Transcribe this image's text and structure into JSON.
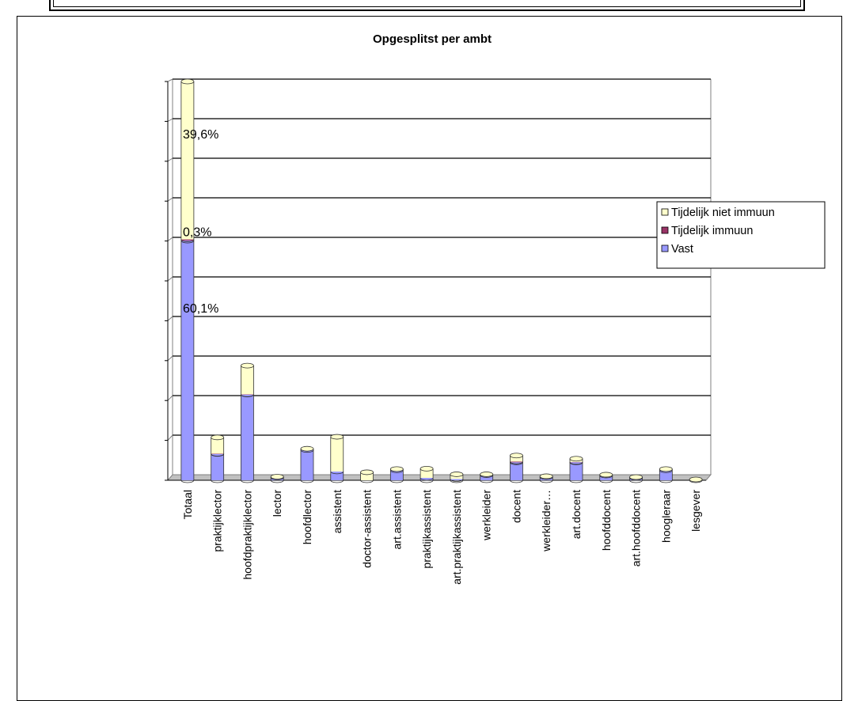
{
  "chart_data": {
    "type": "bar",
    "stacked": true,
    "title": "Opgesplitst per ambt",
    "categories": [
      "Totaal",
      "praktijklector",
      "hoofdpraktijklector",
      "lector",
      "hoofdlector",
      "assistent",
      "doctor-assistent",
      "art.assistent",
      "praktijkassistent",
      "art.praktijkassistent",
      "werkleider",
      "docent",
      "werkleider…",
      "art.docent",
      "hoofddocent",
      "art.hoofddocent",
      "hoogleraar",
      "lesgever"
    ],
    "series": [
      {
        "name": "Vast",
        "color": "#9999ff",
        "values": [
          60.1,
          6.6,
          21.5,
          0.7,
          7.6,
          2.2,
          0.0,
          2.5,
          0.6,
          0.3,
          1.3,
          4.5,
          0.8,
          4.5,
          1.2,
          0.6,
          2.5,
          0.0
        ]
      },
      {
        "name": "Tijdelijk immuun",
        "color": "#993366",
        "values": [
          0.3,
          0.05,
          0.05,
          0.0,
          0.0,
          0.0,
          0.0,
          0.0,
          0.0,
          0.0,
          0.0,
          0.2,
          0.0,
          0.1,
          0.0,
          0.0,
          0.0,
          0.0
        ]
      },
      {
        "name": "Tijdelijk niet immuun",
        "color": "#ffffcc",
        "values": [
          39.6,
          4.1,
          7.2,
          0.2,
          0.3,
          8.7,
          2.0,
          0.3,
          2.3,
          1.2,
          0.2,
          1.5,
          0.2,
          0.8,
          0.2,
          0.2,
          0.3,
          0.2
        ]
      }
    ],
    "data_labels": [
      {
        "text": "39,6%",
        "category": "Totaal",
        "y": 86.9
      },
      {
        "text": "0,3%",
        "category": "Totaal",
        "y": 62.4
      },
      {
        "text": "60,1%",
        "category": "Totaal",
        "y": 43.3
      }
    ],
    "ylim": [
      0,
      100
    ],
    "grid": true,
    "legend": {
      "placement": "right",
      "entries": [
        "Tijdelijk niet immuun",
        "Tijdelijk immuun",
        "Vast"
      ]
    }
  }
}
